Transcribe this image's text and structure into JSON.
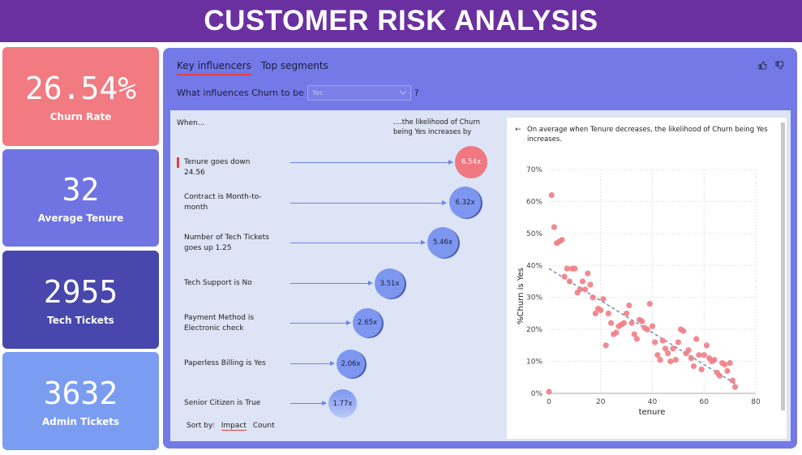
{
  "title": "CUSTOMER RISK ANALYSIS",
  "kpis": [
    {
      "value": "26.54%",
      "label": "Churn Rate"
    },
    {
      "value": "32",
      "label": "Average Tenure"
    },
    {
      "value": "2955",
      "label": "Tech Tickets"
    },
    {
      "value": "3632",
      "label": "Admin Tickets"
    }
  ],
  "tabs": {
    "key_influencers": "Key influencers",
    "top_segments": "Top segments"
  },
  "question": {
    "prefix": "What influences Churn to be",
    "selected": "Yes",
    "suffix": "?"
  },
  "influencers": {
    "when_header": "When...",
    "likelihood_header": "....the likelihood of Churn being Yes increases by",
    "items": [
      {
        "label": "Tenure goes down 24.56",
        "factor": "6.54x",
        "selected": true
      },
      {
        "label": "Contract is Month-to-month",
        "factor": "6.32x"
      },
      {
        "label": "Number of Tech Tickets goes up 1.25",
        "factor": "5.46x"
      },
      {
        "label": "Tech Support is No",
        "factor": "3.51x"
      },
      {
        "label": "Payment Method is Electronic check",
        "factor": "2.65x"
      },
      {
        "label": "Paperless Billing is Yes",
        "factor": "2.06x"
      },
      {
        "label": "Senior Citizen is True",
        "factor": "1.77x"
      }
    ],
    "sort_by": "Sort by:",
    "sort_impact": "Impact",
    "sort_count": "Count"
  },
  "insight_text": "On average when Tenure decreases, the likelihood of Churn being Yes increases.",
  "back_icon": "arrow-left-icon",
  "colors": {
    "title_bg": "#6a30a0",
    "accent_red": "#f07880",
    "bubble_blue": "#7d97f0",
    "panel": "#7379e6"
  },
  "chart_data": {
    "type": "scatter",
    "title": "",
    "xlabel": "tenure",
    "ylabel": "%Churn is Yes",
    "xlim": [
      0,
      80
    ],
    "ylim": [
      0,
      70
    ],
    "x_ticks": [
      "0",
      "20",
      "40",
      "60",
      "80"
    ],
    "y_ticks": [
      "0%",
      "10%",
      "20%",
      "30%",
      "40%",
      "50%",
      "60%",
      "70%"
    ],
    "grid": true,
    "trendline": {
      "x": [
        0,
        72
      ],
      "y": [
        39,
        3
      ]
    },
    "series": [
      {
        "x": [
          0,
          1,
          2,
          3,
          4,
          5,
          6,
          7,
          8,
          9,
          10,
          11,
          12,
          13,
          14,
          15,
          16,
          17,
          18,
          19,
          20,
          21,
          22,
          23,
          24,
          25,
          26,
          27,
          28,
          29,
          30,
          31,
          32,
          33,
          34,
          35,
          36,
          37,
          38,
          39,
          40,
          41,
          42,
          43,
          44,
          45,
          46,
          47,
          48,
          49,
          50,
          51,
          52,
          53,
          54,
          55,
          56,
          57,
          58,
          59,
          60,
          61,
          62,
          63,
          64,
          65,
          66,
          67,
          68,
          69,
          70,
          71,
          72
        ],
        "y": [
          0.5,
          62,
          52,
          47,
          47.5,
          48,
          36.5,
          39,
          35,
          39,
          39,
          31.5,
          32.5,
          35,
          32.5,
          37.5,
          34,
          30,
          25,
          26.5,
          26,
          29.5,
          15,
          25,
          22,
          18.5,
          19,
          21,
          21.5,
          22,
          25,
          27.5,
          22,
          18.5,
          17,
          23,
          22.5,
          20.5,
          20,
          28,
          21,
          16,
          12,
          10.5,
          16.5,
          14,
          12.5,
          10,
          14,
          10.5,
          16,
          20,
          19.5,
          12.5,
          13.5,
          11,
          8.5,
          17,
          12,
          7.5,
          12,
          15,
          11,
          10,
          10.5,
          6.5,
          5.5,
          9.5,
          9,
          7,
          9.5,
          4,
          2
        ]
      }
    ]
  }
}
